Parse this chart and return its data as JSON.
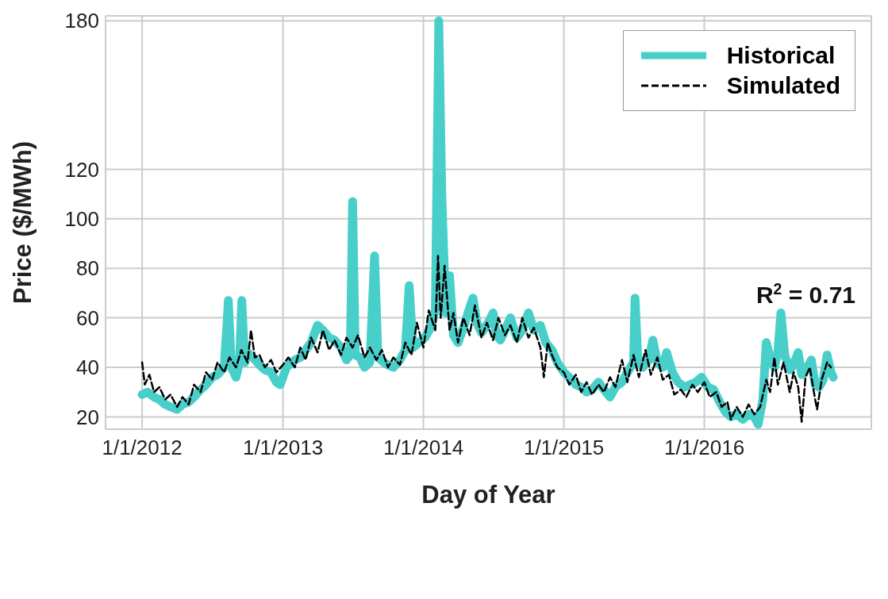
{
  "chart_data": {
    "type": "line",
    "xlabel": "Day of Year",
    "ylabel": "Price ($/MWh)",
    "xlim": [
      "2011-09-28",
      "2017-03-10"
    ],
    "ylim": [
      15,
      182
    ],
    "xticks": [
      {
        "value": "2012-01-01",
        "label": "1/1/2012"
      },
      {
        "value": "2013-01-01",
        "label": "1/1/2013"
      },
      {
        "value": "2014-01-01",
        "label": "1/1/2014"
      },
      {
        "value": "2015-01-01",
        "label": "1/1/2015"
      },
      {
        "value": "2016-01-01",
        "label": "1/1/2016"
      }
    ],
    "yticks": [
      20,
      40,
      60,
      80,
      100,
      120,
      180
    ],
    "grid": true,
    "legend": "top right",
    "annotations": [
      "R$^{2}$ = 0.71"
    ],
    "series": [
      {
        "name": "Historical",
        "color": "#48cfca",
        "line_style": "solid",
        "x": [
          "2012-01-01",
          "2012-01-15",
          "2012-02-01",
          "2012-02-15",
          "2012-03-01",
          "2012-03-15",
          "2012-04-01",
          "2012-04-15",
          "2012-05-01",
          "2012-05-15",
          "2012-06-01",
          "2012-06-15",
          "2012-07-01",
          "2012-07-15",
          "2012-08-01",
          "2012-08-08",
          "2012-08-12",
          "2012-08-20",
          "2012-09-01",
          "2012-09-10",
          "2012-09-16",
          "2012-09-24",
          "2012-10-01",
          "2012-10-15",
          "2012-11-01",
          "2012-11-15",
          "2012-12-01",
          "2012-12-15",
          "2012-12-25",
          "2013-01-10",
          "2013-02-01",
          "2013-02-15",
          "2013-03-01",
          "2013-03-15",
          "2013-04-01",
          "2013-04-15",
          "2013-05-01",
          "2013-05-15",
          "2013-06-01",
          "2013-06-15",
          "2013-06-25",
          "2013-07-01",
          "2013-07-08",
          "2013-07-20",
          "2013-08-01",
          "2013-08-15",
          "2013-08-27",
          "2013-09-05",
          "2013-09-20",
          "2013-10-01",
          "2013-10-15",
          "2013-11-01",
          "2013-11-15",
          "2013-11-25",
          "2013-12-05",
          "2013-12-20",
          "2014-01-05",
          "2014-01-20",
          "2014-02-01",
          "2014-02-10",
          "2014-02-18",
          "2014-02-28",
          "2014-03-10",
          "2014-03-20",
          "2014-04-01",
          "2014-04-15",
          "2014-05-01",
          "2014-05-10",
          "2014-05-20",
          "2014-06-01",
          "2014-06-15",
          "2014-07-01",
          "2014-07-10",
          "2014-07-20",
          "2014-08-01",
          "2014-08-15",
          "2014-09-01",
          "2014-09-15",
          "2014-10-01",
          "2014-10-15",
          "2014-11-01",
          "2014-11-15",
          "2014-12-01",
          "2014-12-15",
          "2015-01-01",
          "2015-01-15",
          "2015-02-01",
          "2015-02-15",
          "2015-03-01",
          "2015-03-15",
          "2015-04-01",
          "2015-04-15",
          "2015-05-01",
          "2015-05-15",
          "2015-06-01",
          "2015-06-15",
          "2015-07-01",
          "2015-07-05",
          "2015-07-12",
          "2015-07-25",
          "2015-08-10",
          "2015-08-20",
          "2015-09-01",
          "2015-09-15",
          "2015-09-25",
          "2015-10-10",
          "2015-10-25",
          "2015-11-10",
          "2015-11-25",
          "2015-12-10",
          "2015-12-25",
          "2016-01-10",
          "2016-01-25",
          "2016-02-10",
          "2016-02-25",
          "2016-03-10",
          "2016-03-25",
          "2016-04-10",
          "2016-04-25",
          "2016-05-10",
          "2016-05-20",
          "2016-06-01",
          "2016-06-10",
          "2016-06-20",
          "2016-07-01",
          "2016-07-10",
          "2016-07-18",
          "2016-07-28",
          "2016-08-10",
          "2016-08-20",
          "2016-09-01",
          "2016-09-10",
          "2016-09-25",
          "2016-10-05",
          "2016-10-15",
          "2016-10-25",
          "2016-11-05",
          "2016-11-15",
          "2016-11-25",
          "2016-12-01"
        ],
        "values": [
          29,
          30,
          28,
          27,
          25,
          24,
          23,
          25,
          26,
          28,
          31,
          33,
          36,
          37,
          40,
          56,
          67,
          40,
          36,
          42,
          67,
          42,
          46,
          44,
          41,
          39,
          38,
          34,
          33,
          40,
          43,
          44,
          47,
          50,
          57,
          55,
          52,
          51,
          48,
          43,
          45,
          107,
          45,
          44,
          40,
          42,
          85,
          44,
          42,
          41,
          40,
          43,
          47,
          73,
          48,
          50,
          52,
          56,
          63,
          180,
          109,
          62,
          77,
          53,
          50,
          56,
          64,
          68,
          58,
          54,
          57,
          62,
          53,
          51,
          55,
          60,
          52,
          55,
          62,
          55,
          57,
          50,
          47,
          42,
          38,
          36,
          33,
          32,
          30,
          31,
          34,
          31,
          28,
          32,
          34,
          38,
          42,
          68,
          44,
          40,
          43,
          51,
          42,
          40,
          46,
          38,
          34,
          32,
          33,
          34,
          36,
          32,
          31,
          26,
          22,
          20,
          21,
          19,
          21,
          20,
          17,
          27,
          50,
          44,
          40,
          46,
          62,
          45,
          39,
          41,
          46,
          37,
          40,
          43,
          33,
          32,
          35,
          45,
          38,
          36
        ]
      },
      {
        "name": "Simulated",
        "color": "#000000",
        "line_style": "dashed",
        "x": [
          "2012-01-01",
          "2012-01-08",
          "2012-01-20",
          "2012-02-01",
          "2012-02-15",
          "2012-03-01",
          "2012-03-15",
          "2012-04-01",
          "2012-04-15",
          "2012-05-01",
          "2012-05-15",
          "2012-06-01",
          "2012-06-15",
          "2012-07-01",
          "2012-07-15",
          "2012-08-01",
          "2012-08-15",
          "2012-09-01",
          "2012-09-15",
          "2012-10-01",
          "2012-10-10",
          "2012-10-20",
          "2012-11-01",
          "2012-11-15",
          "2012-12-01",
          "2012-12-15",
          "2013-01-01",
          "2013-01-15",
          "2013-02-01",
          "2013-02-15",
          "2013-03-01",
          "2013-03-15",
          "2013-04-01",
          "2013-04-15",
          "2013-05-01",
          "2013-05-15",
          "2013-06-01",
          "2013-06-15",
          "2013-07-01",
          "2013-07-15",
          "2013-08-01",
          "2013-08-15",
          "2013-09-01",
          "2013-09-15",
          "2013-10-01",
          "2013-10-15",
          "2013-11-01",
          "2013-11-15",
          "2013-12-01",
          "2013-12-15",
          "2014-01-01",
          "2014-01-15",
          "2014-02-01",
          "2014-02-08",
          "2014-02-15",
          "2014-02-25",
          "2014-03-10",
          "2014-03-20",
          "2014-04-01",
          "2014-04-15",
          "2014-05-01",
          "2014-05-15",
          "2014-06-01",
          "2014-06-15",
          "2014-07-01",
          "2014-07-15",
          "2014-08-01",
          "2014-08-15",
          "2014-09-01",
          "2014-09-15",
          "2014-10-01",
          "2014-10-15",
          "2014-11-01",
          "2014-11-10",
          "2014-11-20",
          "2014-12-01",
          "2014-12-15",
          "2015-01-01",
          "2015-01-15",
          "2015-02-01",
          "2015-02-15",
          "2015-03-01",
          "2015-03-15",
          "2015-04-01",
          "2015-04-15",
          "2015-05-01",
          "2015-05-15",
          "2015-06-01",
          "2015-06-15",
          "2015-07-01",
          "2015-07-15",
          "2015-08-01",
          "2015-08-15",
          "2015-09-01",
          "2015-09-15",
          "2015-10-01",
          "2015-10-15",
          "2015-11-01",
          "2015-11-15",
          "2015-12-01",
          "2015-12-15",
          "2016-01-01",
          "2016-01-15",
          "2016-02-01",
          "2016-02-15",
          "2016-03-01",
          "2016-03-10",
          "2016-03-25",
          "2016-04-10",
          "2016-04-25",
          "2016-05-10",
          "2016-05-25",
          "2016-06-10",
          "2016-06-20",
          "2016-07-01",
          "2016-07-10",
          "2016-07-25",
          "2016-08-10",
          "2016-08-20",
          "2016-09-01",
          "2016-09-10",
          "2016-09-20",
          "2016-10-01",
          "2016-10-15",
          "2016-10-20",
          "2016-11-01",
          "2016-11-15",
          "2016-11-25"
        ],
        "values": [
          42,
          33,
          37,
          30,
          32,
          27,
          29,
          24,
          28,
          25,
          33,
          30,
          38,
          35,
          42,
          38,
          44,
          40,
          47,
          42,
          55,
          44,
          45,
          40,
          43,
          38,
          41,
          44,
          40,
          48,
          43,
          52,
          46,
          55,
          47,
          51,
          45,
          52,
          48,
          53,
          44,
          48,
          43,
          47,
          40,
          44,
          41,
          50,
          45,
          58,
          48,
          63,
          55,
          85,
          60,
          81,
          55,
          62,
          50,
          60,
          53,
          65,
          52,
          58,
          51,
          60,
          53,
          57,
          50,
          60,
          52,
          56,
          48,
          36,
          50,
          45,
          40,
          38,
          33,
          37,
          30,
          34,
          29,
          33,
          30,
          36,
          32,
          43,
          34,
          45,
          36,
          47,
          37,
          44,
          35,
          37,
          29,
          31,
          28,
          33,
          30,
          34,
          28,
          30,
          24,
          26,
          19,
          24,
          20,
          25,
          21,
          24,
          35,
          30,
          44,
          33,
          42,
          30,
          38,
          32,
          18,
          36,
          40,
          27,
          23,
          35,
          42,
          40
        ]
      }
    ]
  }
}
